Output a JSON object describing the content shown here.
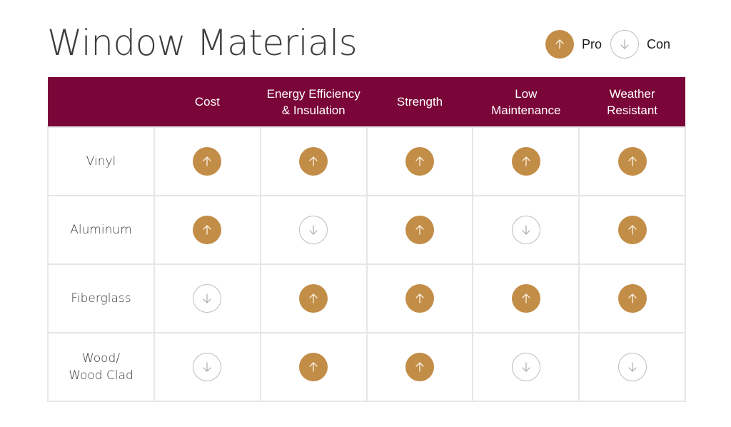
{
  "title": "Window Materials",
  "legend": {
    "pro": {
      "label": "Pro",
      "icon": "arrow-up-icon",
      "color": "#c28d47"
    },
    "con": {
      "label": "Con",
      "icon": "arrow-down-icon",
      "color": "#b9bcc1"
    }
  },
  "colors": {
    "header_bg": "#7a0538",
    "pro_fill": "#c28d47",
    "con_outline": "#b9bcc1",
    "grid_line": "#e6e6e8"
  },
  "table": {
    "columns": [
      "",
      "Cost",
      "Energy Efficiency & Insulation",
      "Strength",
      "Low Maintenance",
      "Weather Resistant"
    ],
    "rows": [
      {
        "label": "Vinyl",
        "values": [
          "pro",
          "pro",
          "pro",
          "pro",
          "pro"
        ]
      },
      {
        "label": "Aluminum",
        "values": [
          "pro",
          "con",
          "pro",
          "con",
          "pro"
        ]
      },
      {
        "label": "Fiberglass",
        "values": [
          "con",
          "pro",
          "pro",
          "pro",
          "pro"
        ]
      },
      {
        "label": "Wood/ Wood Clad",
        "values": [
          "con",
          "pro",
          "pro",
          "con",
          "con"
        ]
      }
    ]
  },
  "chart_data": {
    "type": "table",
    "title": "Window Materials",
    "categories": [
      "Cost",
      "Energy Efficiency & Insulation",
      "Strength",
      "Low Maintenance",
      "Weather Resistant"
    ],
    "series": [
      {
        "name": "Vinyl",
        "values": [
          "Pro",
          "Pro",
          "Pro",
          "Pro",
          "Pro"
        ]
      },
      {
        "name": "Aluminum",
        "values": [
          "Pro",
          "Con",
          "Pro",
          "Con",
          "Pro"
        ]
      },
      {
        "name": "Fiberglass",
        "values": [
          "Con",
          "Pro",
          "Pro",
          "Pro",
          "Pro"
        ]
      },
      {
        "name": "Wood/ Wood Clad",
        "values": [
          "Con",
          "Pro",
          "Pro",
          "Con",
          "Con"
        ]
      }
    ],
    "legend": [
      "Pro",
      "Con"
    ]
  }
}
